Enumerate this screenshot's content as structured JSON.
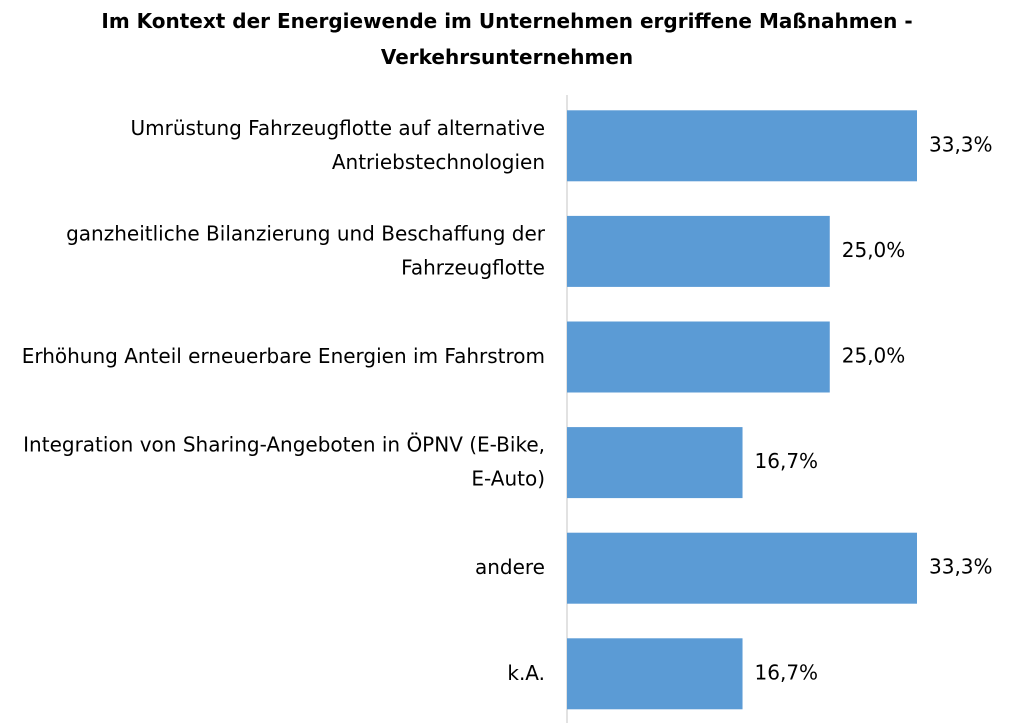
{
  "chart_data": {
    "type": "bar",
    "orientation": "horizontal",
    "title": "Im Kontext der Energiewende im Unternehmen ergriffene Maßnahmen - Verkehrsunternehmen",
    "categories": [
      "Umrüstung Fahrzeugflotte auf alternative Antriebstechnologien",
      "ganzheitliche Bilanzierung und Beschaffung der Fahrzeugflotte",
      "Erhöhung Anteil erneuerbare Energien im Fahrstrom",
      "Integration von Sharing-Angeboten in ÖPNV (E-Bike, E-Auto)",
      "andere",
      "k.A."
    ],
    "values": [
      33.3,
      25.0,
      25.0,
      16.7,
      33.3,
      16.7
    ],
    "value_labels": [
      "33,3%",
      "25,0%",
      "25,0%",
      "16,7%",
      "33,3%",
      "16,7%"
    ],
    "color": "#5b9bd5"
  }
}
